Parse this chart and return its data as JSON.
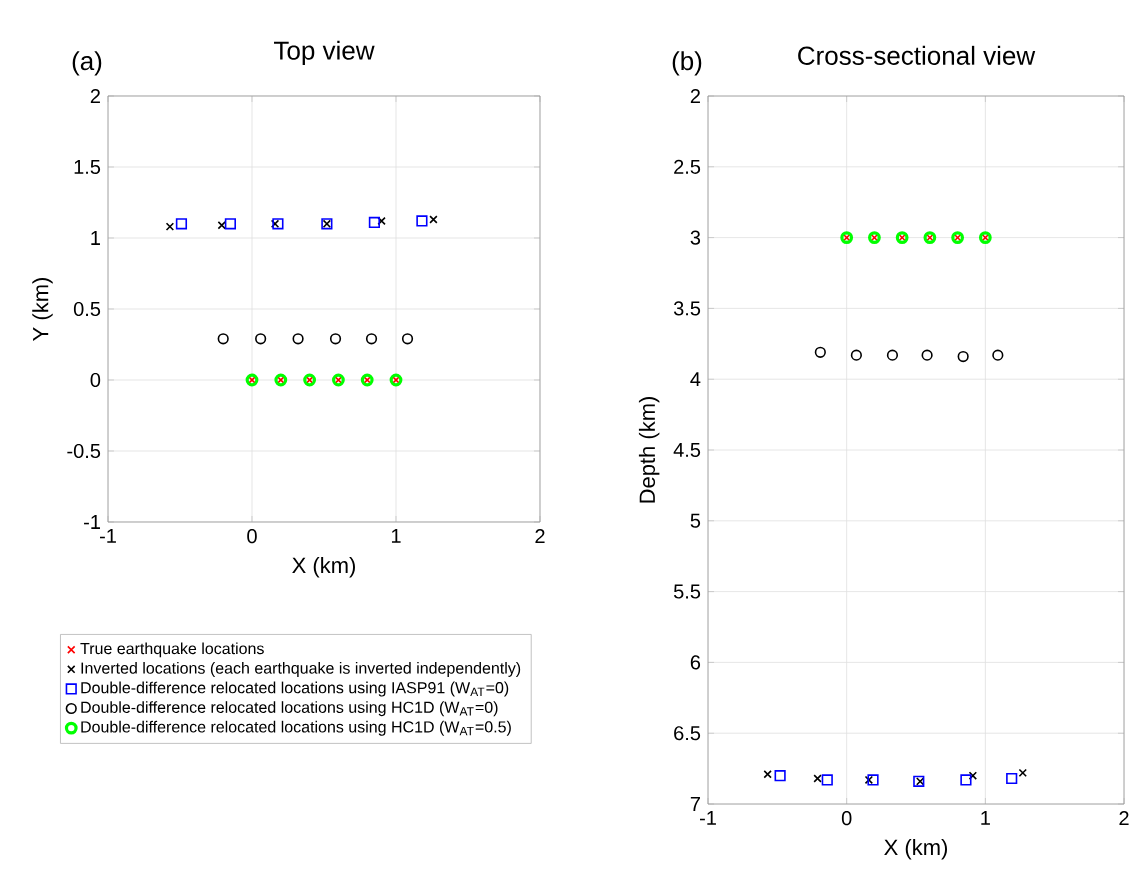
{
  "chart_data": [
    {
      "type": "scatter",
      "title": "Top view",
      "annotations": [
        "(a)"
      ],
      "xlabel": "X (km)",
      "ylabel": "Y (km)",
      "xlim": [
        -1,
        2
      ],
      "ylim": [
        -1,
        2
      ],
      "xticks": [
        -1,
        0,
        1,
        2
      ],
      "yticks": [
        -1,
        -0.5,
        0,
        0.5,
        1,
        1.5,
        2
      ],
      "grid": true,
      "legend": "bottom",
      "series": [
        {
          "name": "True earthquake locations",
          "color": "#ff0000",
          "marker": "cross",
          "x": [
            0,
            0.2,
            0.4,
            0.6,
            0.8,
            1.0
          ],
          "values": [
            0,
            0,
            0,
            0,
            0,
            0
          ]
        },
        {
          "name": "Inverted locations (each earthquake is inverted independently)",
          "color": "#000000",
          "marker": "cross",
          "x": [
            -0.57,
            -0.21,
            0.16,
            0.52,
            0.9,
            1.26
          ],
          "values": [
            1.08,
            1.09,
            1.1,
            1.1,
            1.12,
            1.13
          ]
        },
        {
          "name": "Double-difference relocated locations using IASP91 (W$_{AT}$=0)",
          "color": "#0000ff",
          "marker": "square",
          "x": [
            -0.49,
            -0.15,
            0.18,
            0.52,
            0.85,
            1.18
          ],
          "values": [
            1.1,
            1.1,
            1.1,
            1.1,
            1.11,
            1.12
          ]
        },
        {
          "name": "Double-difference relocated locations using HC1D (W$_{AT}$=0)",
          "color": "#000000",
          "marker": "circle",
          "x": [
            -0.2,
            0.06,
            0.32,
            0.58,
            0.83,
            1.08
          ],
          "values": [
            0.29,
            0.29,
            0.29,
            0.29,
            0.29,
            0.29
          ]
        },
        {
          "name": "Double-difference relocated locations using HC1D (W$_{AT}$=0.5)",
          "color": "#00ff00",
          "marker": "circle",
          "x": [
            0,
            0.2,
            0.4,
            0.6,
            0.8,
            1.0
          ],
          "values": [
            0,
            0,
            0,
            0,
            0,
            0
          ]
        }
      ]
    },
    {
      "type": "scatter",
      "title": "Cross-sectional view",
      "annotations": [
        "(b)"
      ],
      "xlabel": "X (km)",
      "ylabel": "Depth (km)",
      "xlim": [
        -1,
        2
      ],
      "ylim": [
        7,
        2
      ],
      "xticks": [
        -1,
        0,
        1,
        2
      ],
      "yticks": [
        2,
        2.5,
        3,
        3.5,
        4,
        4.5,
        5,
        5.5,
        6,
        6.5,
        7
      ],
      "grid": true,
      "series": [
        {
          "color": "#ff0000",
          "marker": "cross",
          "x": [
            0,
            0.2,
            0.4,
            0.6,
            0.8,
            1.0
          ],
          "values": [
            3,
            3,
            3,
            3,
            3,
            3
          ]
        },
        {
          "color": "#000000",
          "marker": "cross",
          "x": [
            -0.57,
            -0.21,
            0.16,
            0.53,
            0.91,
            1.27
          ],
          "values": [
            6.79,
            6.82,
            6.83,
            6.84,
            6.8,
            6.78
          ]
        },
        {
          "color": "#0000ff",
          "marker": "square",
          "x": [
            -0.48,
            -0.14,
            0.19,
            0.52,
            0.86,
            1.19
          ],
          "values": [
            6.8,
            6.83,
            6.83,
            6.84,
            6.83,
            6.82
          ]
        },
        {
          "color": "#000000",
          "marker": "circle",
          "x": [
            -0.19,
            0.07,
            0.33,
            0.58,
            0.84,
            1.09
          ],
          "values": [
            3.81,
            3.83,
            3.83,
            3.83,
            3.84,
            3.83
          ]
        },
        {
          "color": "#00ff00",
          "marker": "circle",
          "x": [
            0,
            0.2,
            0.4,
            0.6,
            0.8,
            1.0
          ],
          "values": [
            3,
            3,
            3,
            3,
            3,
            3
          ]
        }
      ]
    }
  ]
}
